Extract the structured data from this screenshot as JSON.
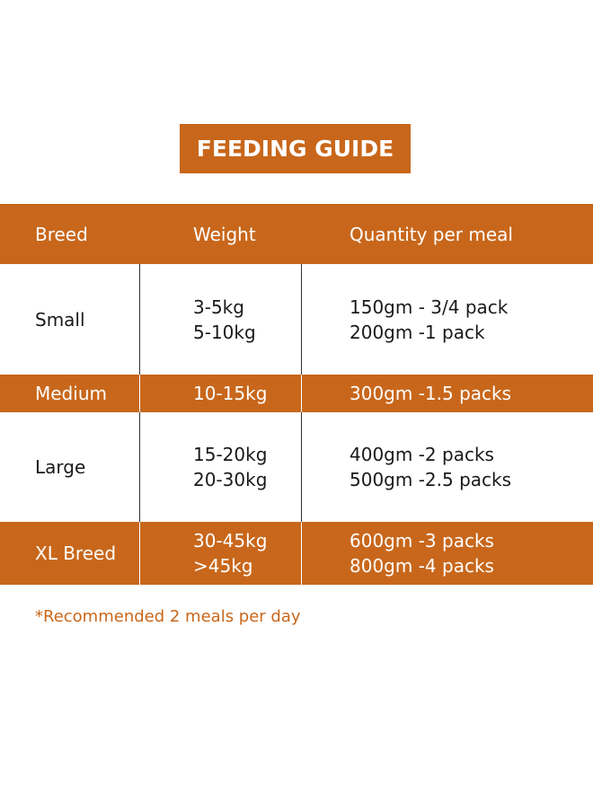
{
  "title": "FEEDING GUIDE",
  "colors": {
    "accent": "#c8671b",
    "text_dark": "#1a1a1a",
    "text_light": "#ffffff"
  },
  "table": {
    "headers": [
      "Breed",
      "Weight",
      "Quantity per meal"
    ],
    "rows": [
      {
        "breed": "Small",
        "weights": [
          "3-5kg",
          "5-10kg"
        ],
        "quantities": [
          "150gm - 3/4 pack",
          "200gm -1 pack"
        ]
      },
      {
        "breed": "Medium",
        "weights": [
          "10-15kg"
        ],
        "quantities": [
          "300gm -1.5 packs"
        ]
      },
      {
        "breed": "Large",
        "weights": [
          "15-20kg",
          "20-30kg"
        ],
        "quantities": [
          "400gm -2 packs",
          "500gm -2.5 packs"
        ]
      },
      {
        "breed": "XL Breed",
        "weights": [
          "30-45kg",
          ">45kg"
        ],
        "quantities": [
          "600gm -3 packs",
          "800gm -4 packs"
        ]
      }
    ]
  },
  "note": "*Recommended 2 meals per day"
}
